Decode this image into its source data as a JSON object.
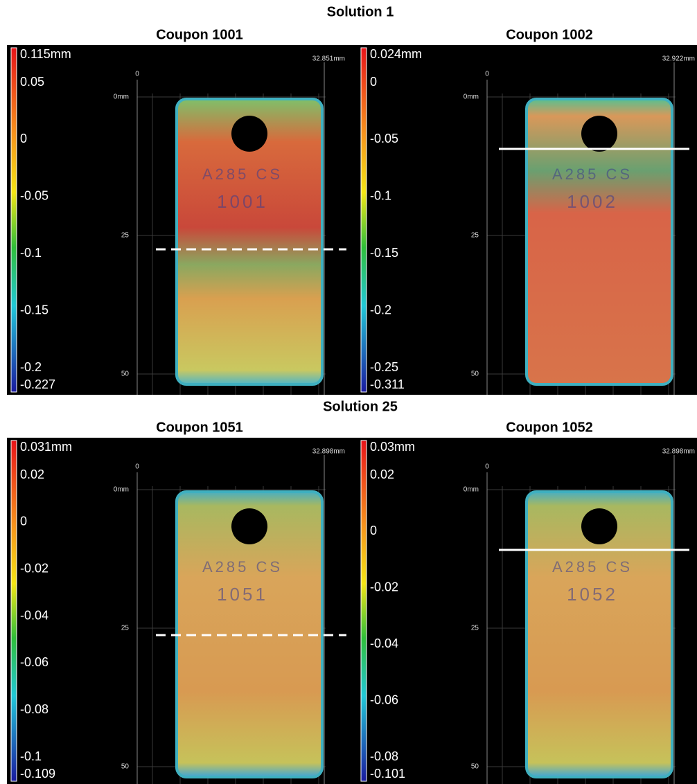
{
  "sections": [
    {
      "title": "Solution 1",
      "panels": [
        {
          "title": "Coupon 1001",
          "scale": [
            "0.115mm",
            "0.05",
            "0",
            "-0.05",
            "-0.1",
            "-0.15",
            "-0.2",
            "-0.227"
          ],
          "width_label": "32.851mm",
          "x_axis_label": "0",
          "y_axis_labels": [
            "0mm",
            "25",
            "50"
          ],
          "stamp": [
            "A285 CS",
            "1001"
          ]
        },
        {
          "title": "Coupon 1002",
          "scale": [
            "0.024mm",
            "0",
            "-0.05",
            "-0.1",
            "-0.15",
            "-0.2",
            "-0.25",
            "-0.311"
          ],
          "width_label": "32.922mm",
          "x_axis_label": "0",
          "y_axis_labels": [
            "0mm",
            "25",
            "50"
          ],
          "stamp": [
            "A285 CS",
            "1002"
          ]
        }
      ]
    },
    {
      "title": "Solution 25",
      "panels": [
        {
          "title": "Coupon 1051",
          "scale": [
            "0.031mm",
            "0.02",
            "0",
            "-0.02",
            "-0.04",
            "-0.06",
            "-0.08",
            "-0.1",
            "-0.109"
          ],
          "width_label": "32.898mm",
          "x_axis_label": "0",
          "y_axis_labels": [
            "0mm",
            "25",
            "50"
          ],
          "stamp": [
            "A285 CS",
            "1051"
          ]
        },
        {
          "title": "Coupon 1052",
          "scale": [
            "0.03mm",
            "0.02",
            "0",
            "-0.02",
            "-0.04",
            "-0.06",
            "-0.08",
            "-0.101"
          ],
          "width_label": "32.898mm",
          "x_axis_label": "0",
          "y_axis_labels": [
            "0mm",
            "25",
            "50"
          ],
          "stamp": [
            "A285 CS",
            "1052"
          ]
        }
      ]
    }
  ]
}
